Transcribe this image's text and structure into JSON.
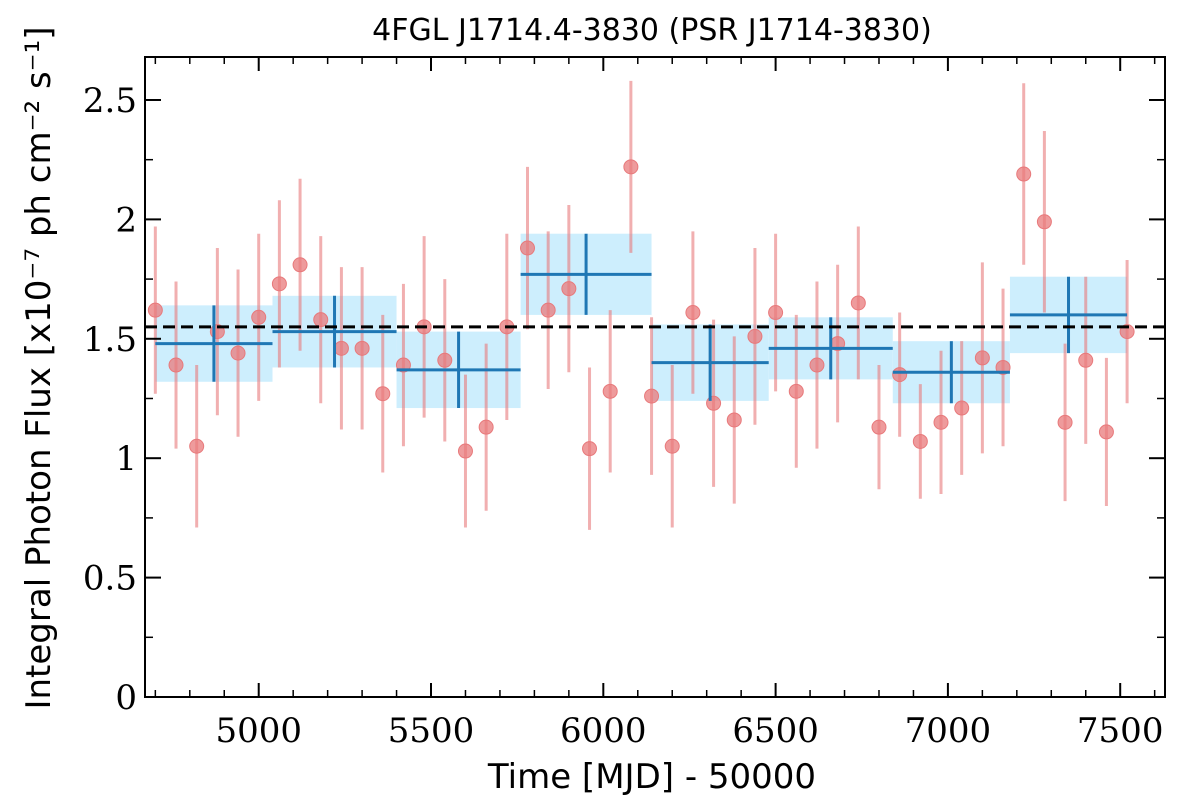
{
  "chart_data": {
    "type": "scatter",
    "title": "4FGL J1714.4-3830 (PSR J1714-3830)",
    "xlabel": "Time [MJD] - 50000",
    "ylabel": "Integral Photon Flux [x10⁻⁷ ph cm⁻² s⁻¹]",
    "xlim": [
      4670,
      7630
    ],
    "ylim": [
      0,
      2.68
    ],
    "xticks": [
      5000,
      5500,
      6000,
      6500,
      7000,
      7500
    ],
    "xtick_labels": [
      "5000",
      "5500",
      "6000",
      "6500",
      "7000",
      "7500"
    ],
    "yticks": [
      0,
      0.5,
      1,
      1.5,
      2,
      2.5
    ],
    "ytick_labels": [
      "0",
      "0.5",
      "1",
      "1.5",
      "2",
      "2.5"
    ],
    "mean_flux": 1.55,
    "grid": false,
    "colors": {
      "points": "#e8797b",
      "bins": "#1f77b4",
      "bin_band": "#cdeefd",
      "mean_line": "#000000"
    },
    "series": [
      {
        "kind": "short-bin points",
        "x": [
          4700,
          4760,
          4820,
          4880,
          4940,
          5000,
          5060,
          5120,
          5180,
          5240,
          5300,
          5360,
          5420,
          5480,
          5540,
          5600,
          5660,
          5720,
          5780,
          5840,
          5900,
          5960,
          6020,
          6080,
          6140,
          6200,
          6260,
          6320,
          6380,
          6440,
          6500,
          6560,
          6620,
          6680,
          6740,
          6800,
          6860,
          6920,
          6980,
          7040,
          7100,
          7160,
          7220,
          7280,
          7340,
          7400,
          7460,
          7520
        ],
        "y": [
          1.62,
          1.39,
          1.05,
          1.53,
          1.44,
          1.59,
          1.73,
          1.81,
          1.58,
          1.46,
          1.46,
          1.27,
          1.39,
          1.55,
          1.41,
          1.03,
          1.13,
          1.55,
          1.88,
          1.62,
          1.71,
          1.04,
          1.28,
          2.22,
          1.26,
          1.05,
          1.61,
          1.23,
          1.16,
          1.51,
          1.61,
          1.28,
          1.39,
          1.48,
          1.65,
          1.13,
          1.35,
          1.07,
          1.15,
          1.21,
          1.42,
          1.38,
          2.19,
          1.99,
          1.15,
          1.41,
          1.11,
          1.53
        ],
        "yerr": [
          0.35,
          0.35,
          0.34,
          0.35,
          0.35,
          0.35,
          0.35,
          0.36,
          0.35,
          0.34,
          0.34,
          0.33,
          0.34,
          0.38,
          0.34,
          0.32,
          0.35,
          0.39,
          0.34,
          0.33,
          0.35,
          0.34,
          0.34,
          0.36,
          0.33,
          0.34,
          0.34,
          0.35,
          0.35,
          0.37,
          0.33,
          0.32,
          0.35,
          0.33,
          0.32,
          0.26,
          0.26,
          0.24,
          0.3,
          0.28,
          0.4,
          0.33,
          0.38,
          0.38,
          0.33,
          0.35,
          0.31,
          0.3
        ]
      },
      {
        "kind": "long bins",
        "x_start": [
          4700,
          5040,
          5400,
          5760,
          6140,
          6480,
          6840,
          7180
        ],
        "x_end": [
          5040,
          5400,
          5760,
          6140,
          6480,
          6840,
          7180,
          7520
        ],
        "y": [
          1.48,
          1.53,
          1.37,
          1.77,
          1.4,
          1.46,
          1.36,
          1.6
        ],
        "yerr": [
          0.16,
          0.15,
          0.16,
          0.17,
          0.16,
          0.13,
          0.13,
          0.16
        ]
      }
    ]
  }
}
